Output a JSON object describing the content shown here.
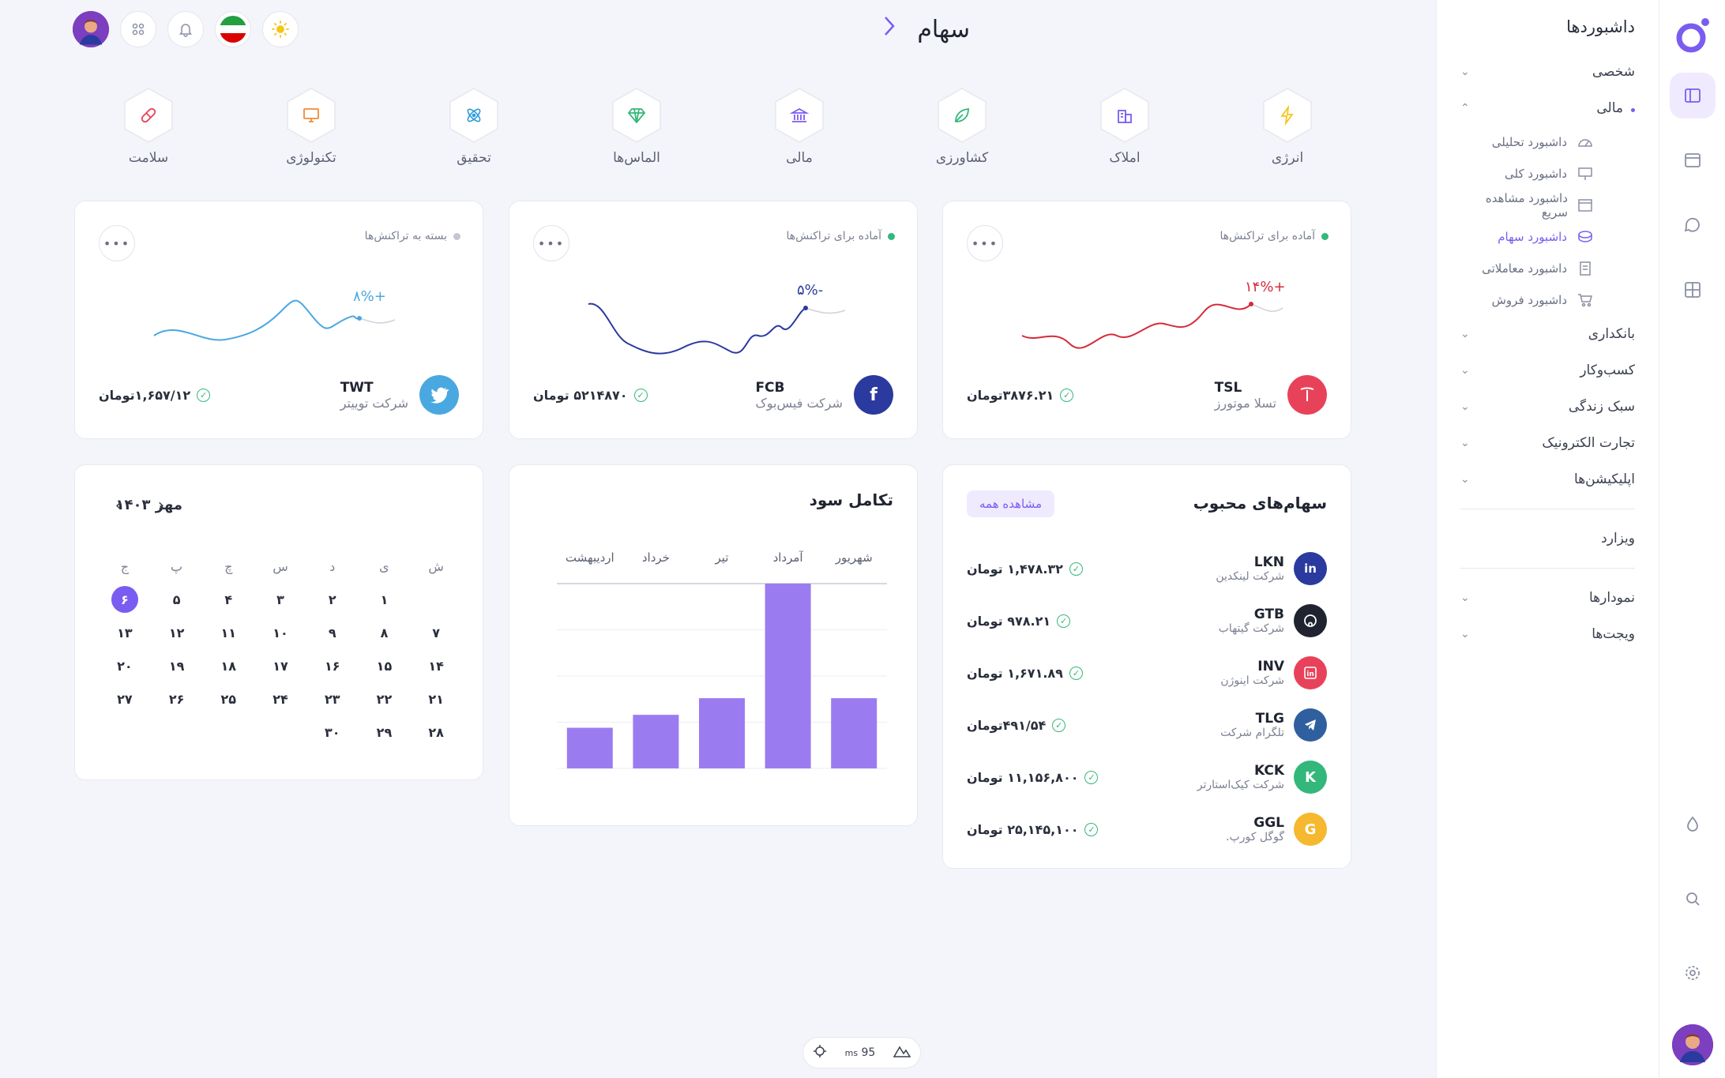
{
  "sidebar": {
    "title": "داشبوردها",
    "groups": [
      {
        "label": "شخصی"
      },
      {
        "label": "مالی"
      }
    ],
    "subitems": [
      {
        "label": "داشبورد تحلیلی",
        "icon": "gauge-icon"
      },
      {
        "label": "داشبورد کلی",
        "icon": "presentation-icon"
      },
      {
        "label": "داشبورد مشاهده سریع",
        "icon": "window-icon"
      },
      {
        "label": "داشبورد سهام",
        "icon": "database-icon"
      },
      {
        "label": "داشبورد معاملاتی",
        "icon": "receipt-icon"
      },
      {
        "label": "داشبورد فروش",
        "icon": "cart-icon"
      }
    ],
    "more_groups": [
      {
        "label": "بانکداری"
      },
      {
        "label": "کسب‌وکار"
      },
      {
        "label": "سبک زندگی"
      },
      {
        "label": "تجارت الکترونیک"
      },
      {
        "label": "اپلیکیشن‌ها"
      }
    ],
    "wizard": "ویزارد",
    "bottom_groups": [
      {
        "label": "نمودارها"
      },
      {
        "label": "ویجت‌ها"
      }
    ]
  },
  "page": {
    "title": "سهام"
  },
  "categories": [
    {
      "label": "انرژی",
      "icon": "bolt-icon",
      "color": "#f5c518"
    },
    {
      "label": "املاک",
      "icon": "building-icon",
      "color": "#7b5cf0"
    },
    {
      "label": "کشاورزی",
      "icon": "leaf-icon",
      "color": "#34b77a"
    },
    {
      "label": "مالی",
      "icon": "bank-icon",
      "color": "#7b5cf0"
    },
    {
      "label": "الماس‌ها",
      "icon": "diamond-icon",
      "color": "#34b77a"
    },
    {
      "label": "تحقیق",
      "icon": "atom-icon",
      "color": "#2f9ad8"
    },
    {
      "label": "تکنولوژی",
      "icon": "monitor-icon",
      "color": "#f28a35"
    },
    {
      "label": "سلامت",
      "icon": "pill-icon",
      "color": "#e8425a"
    }
  ],
  "stocks": [
    {
      "status": "آماده برای تراکنش‌ها",
      "status_color": "#34b77a",
      "ticker": "TSL",
      "company": "تسلا موتورز",
      "price": "۳۸۷۶.۲۱تومان",
      "change": "+۱۴%",
      "line_color": "#d62b3a",
      "logo_color": "#e8425a",
      "logo": "T"
    },
    {
      "status": "آماده برای تراکنش‌ها",
      "status_color": "#34b77a",
      "ticker": "FCB",
      "company": "شرکت فیس‌بوک",
      "price": "۵۲۱۴۸۷۰ تومان",
      "change": "-۵%",
      "line_color": "#2b3a9e",
      "logo_color": "#2b3a9e",
      "logo": "f"
    },
    {
      "status": "بسته به تراکنش‌ها",
      "status_color": "#c4c6d0",
      "ticker": "TWT",
      "company": "شرکت توییتر",
      "price": "۱,۶۵۷/۱۲تومان",
      "change": "+۸%",
      "line_color": "#4aa8e0",
      "logo_color": "#4aa8e0",
      "logo": "t"
    }
  ],
  "favorites": {
    "title": "سهام‌های محبوب",
    "view_all": "مشاهده همه",
    "items": [
      {
        "ticker": "LKN",
        "company": "شرکت لینکدین",
        "price": "۱,۴۷۸.۳۲ تومان",
        "logo": "in",
        "logo_color": "#2b3a9e"
      },
      {
        "ticker": "GTB",
        "company": "شرکت گیتهاب",
        "price": "۹۷۸.۲۱ تومان",
        "logo": "gh",
        "logo_color": "#1f2430"
      },
      {
        "ticker": "INV",
        "company": "شرکت اینوژن",
        "price": "۱,۶۷۱.۸۹ تومان",
        "logo": "in",
        "logo_color": "#e8425a"
      },
      {
        "ticker": "TLG",
        "company": "تلگرام شرکت",
        "price": "۴۹۱/۵۴تومان",
        "logo": "tg",
        "logo_color": "#2f5f9e"
      },
      {
        "ticker": "KCK",
        "company": "شرکت کیک‌استارتر",
        "price": "۱۱,۱۵۶,۸۰۰ تومان",
        "logo": "K",
        "logo_color": "#34b77a"
      },
      {
        "ticker": "GGL",
        "company": "گوگل کورپ.",
        "price": "۲۵,۱۴۵,۱۰۰ تومان",
        "logo": "G",
        "logo_color": "#f5b82e"
      }
    ]
  },
  "profit": {
    "title": "تکامل سود"
  },
  "chart_data": {
    "type": "bar",
    "categories": [
      "شهریور",
      "آمرداد",
      "تیر",
      "خرداد",
      "اردیبهشت"
    ],
    "values": [
      38,
      100,
      38,
      29,
      22
    ],
    "title": "تکامل سود",
    "bar_color": "#9b7cf0"
  },
  "calendar": {
    "title": "مهر ۱۴۰۳",
    "weekdays": [
      "ش",
      "ی",
      "د",
      "س",
      "چ",
      "پ",
      "ج"
    ],
    "days": [
      "",
      "۱",
      "۲",
      "۳",
      "۴",
      "۵",
      "۶",
      "۷",
      "۸",
      "۹",
      "۱۰",
      "۱۱",
      "۱۲",
      "۱۳",
      "۱۴",
      "۱۵",
      "۱۶",
      "۱۷",
      "۱۸",
      "۱۹",
      "۲۰",
      "۲۱",
      "۲۲",
      "۲۳",
      "۲۴",
      "۲۵",
      "۲۶",
      "۲۷",
      "۲۸",
      "۲۹",
      "۳۰"
    ],
    "today": "۶"
  },
  "perf": {
    "value": "95",
    "unit": "ms"
  }
}
